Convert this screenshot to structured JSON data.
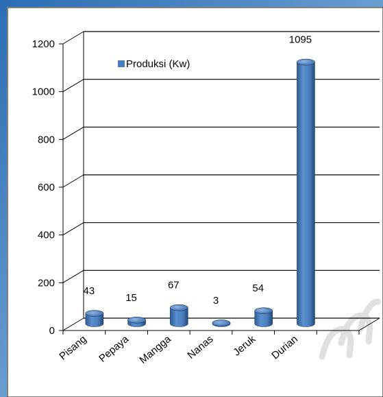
{
  "chart_data": {
    "type": "bar",
    "categories": [
      "Pisang",
      "Pepaya",
      "Mangga",
      "Nanas",
      "Jeruk",
      "Durian"
    ],
    "series": [
      {
        "name": "Produksi (Kw)",
        "values": [
          43,
          15,
          67,
          3,
          54,
          1095
        ]
      }
    ],
    "data_labels": [
      "43",
      "15",
      "67",
      "3",
      "54",
      "1095"
    ],
    "y_ticks": [
      "0",
      "200",
      "400",
      "600",
      "800",
      "1000",
      "1200"
    ],
    "ylim": [
      0,
      1200
    ],
    "grid": true,
    "legend_position": "top-left",
    "bar_color": "#4a7ebb"
  }
}
